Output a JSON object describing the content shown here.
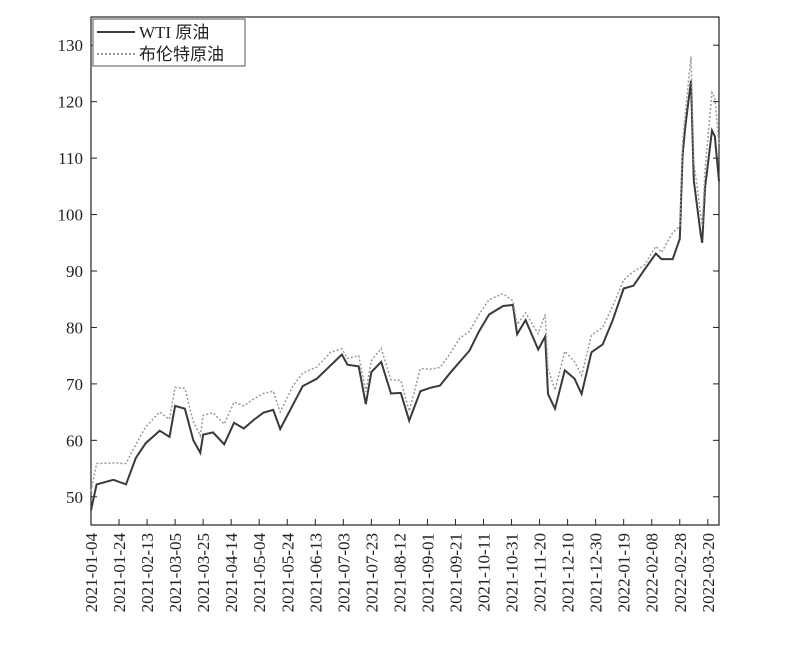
{
  "chart_data": {
    "type": "line",
    "x": [
      "2021-01-04",
      "2021-01-08",
      "2021-01-20",
      "2021-01-29",
      "2021-02-05",
      "2021-02-12",
      "2021-02-22",
      "2021-03-01",
      "2021-03-05",
      "2021-03-12",
      "2021-03-18",
      "2021-03-23",
      "2021-03-25",
      "2021-04-01",
      "2021-04-09",
      "2021-04-16",
      "2021-04-23",
      "2021-04-30",
      "2021-05-07",
      "2021-05-14",
      "2021-05-19",
      "2021-05-28",
      "2021-06-04",
      "2021-06-14",
      "2021-06-24",
      "2021-07-02",
      "2021-07-06",
      "2021-07-14",
      "2021-07-19",
      "2021-07-23",
      "2021-07-30",
      "2021-08-06",
      "2021-08-13",
      "2021-08-19",
      "2021-08-27",
      "2021-09-03",
      "2021-09-10",
      "2021-09-17",
      "2021-09-24",
      "2021-10-01",
      "2021-10-08",
      "2021-10-15",
      "2021-10-25",
      "2021-11-01",
      "2021-11-04",
      "2021-11-10",
      "2021-11-19",
      "2021-11-24",
      "2021-11-26",
      "2021-12-01",
      "2021-12-08",
      "2021-12-15",
      "2021-12-20",
      "2021-12-27",
      "2022-01-04",
      "2022-01-11",
      "2022-01-19",
      "2022-01-26",
      "2022-02-03",
      "2022-02-11",
      "2022-02-15",
      "2022-02-23",
      "2022-02-28",
      "2022-03-02",
      "2022-03-04",
      "2022-03-08",
      "2022-03-10",
      "2022-03-15",
      "2022-03-16",
      "2022-03-18",
      "2022-03-23",
      "2022-03-25",
      "2022-03-28"
    ],
    "series": [
      {
        "name": "WTI 原油",
        "color": "#3a3a3a",
        "dash": "solid",
        "values": [
          47.6,
          52.2,
          53,
          52.2,
          56.9,
          59.5,
          61.7,
          60.6,
          66.1,
          65.6,
          60,
          57.8,
          61,
          61.4,
          59.3,
          63.1,
          62.1,
          63.6,
          64.9,
          65.4,
          62,
          66.3,
          69.6,
          70.9,
          73.3,
          75.2,
          73.4,
          73.1,
          66.4,
          72.1,
          73.9,
          68.3,
          68.4,
          63.5,
          68.7,
          69.3,
          69.7,
          71.9,
          73.9,
          75.9,
          79.4,
          82.3,
          83.8,
          84,
          78.8,
          81.3,
          76.1,
          78.4,
          68.2,
          65.6,
          72.4,
          70.9,
          68.2,
          75.6,
          77,
          81.2,
          86.9,
          87.4,
          90.3,
          93.1,
          92.1,
          92.1,
          95.7,
          110.6,
          115.7,
          123.7,
          106,
          96.4,
          95,
          104.7,
          114.9,
          113.9,
          105.9
        ]
      },
      {
        "name": "布伦特原油",
        "color": "#9a9a9a",
        "dash": "dotted",
        "values": [
          51,
          55.9,
          56,
          55.9,
          59.3,
          62.4,
          65,
          63.7,
          69.4,
          69.2,
          63.3,
          60.8,
          64.4,
          64.9,
          62.9,
          66.8,
          66.1,
          67.3,
          68.3,
          68.7,
          65,
          69.6,
          71.9,
          73,
          75.6,
          76.2,
          74.5,
          75,
          68.6,
          74.1,
          76.3,
          70.7,
          70.6,
          65.2,
          72.7,
          72.6,
          72.9,
          75.3,
          78.1,
          79.3,
          82.4,
          84.9,
          86,
          84.7,
          80.5,
          82.6,
          78.9,
          82.3,
          72.7,
          68.9,
          75.8,
          73.9,
          71.5,
          78.6,
          80,
          83.7,
          88.4,
          89.9,
          91.1,
          94.4,
          93.3,
          96.8,
          97.9,
          112.9,
          118.1,
          128,
          109.3,
          99.9,
          98,
          107.9,
          121.6,
          120.7,
          112.5
        ]
      }
    ],
    "xlim": [
      "2021-01-04",
      "2022-03-28"
    ],
    "xticks": [
      "2021-01-04",
      "2021-01-24",
      "2021-02-13",
      "2021-03-05",
      "2021-03-25",
      "2021-04-14",
      "2021-05-04",
      "2021-05-24",
      "2021-06-13",
      "2021-07-03",
      "2021-07-23",
      "2021-08-12",
      "2021-09-01",
      "2021-09-21",
      "2021-10-11",
      "2021-10-31",
      "2021-11-20",
      "2021-12-10",
      "2021-12-30",
      "2022-01-19",
      "2022-02-08",
      "2022-02-28",
      "2022-03-20"
    ],
    "ylim": [
      45,
      135
    ],
    "yticks": [
      50,
      60,
      70,
      80,
      90,
      100,
      110,
      120,
      130
    ],
    "legend": "upper left"
  }
}
